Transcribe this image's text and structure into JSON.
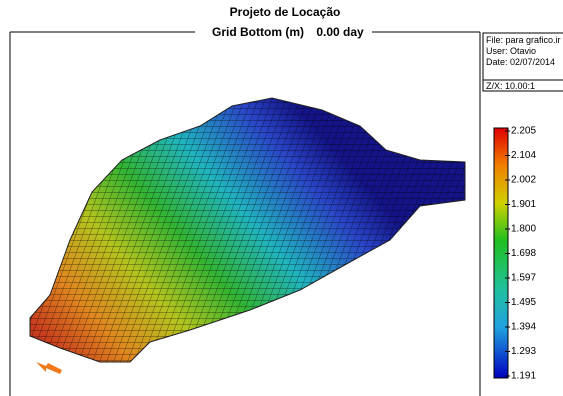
{
  "header": {
    "title": "Projeto de Locação",
    "subtitle": "Grid Bottom (m)",
    "time": "0.00 day"
  },
  "info": {
    "file": "File: para grafico.ir",
    "user": "User: Otavio",
    "date": "Date: 02/07/2014",
    "scale": "Z/X: 10.00:1"
  },
  "colorbar": {
    "labels": [
      "2.205",
      "2.104",
      "2.002",
      "1.901",
      "1.800",
      "1.698",
      "1.597",
      "1.495",
      "1.394",
      "1.293",
      "1.191"
    ]
  }
}
